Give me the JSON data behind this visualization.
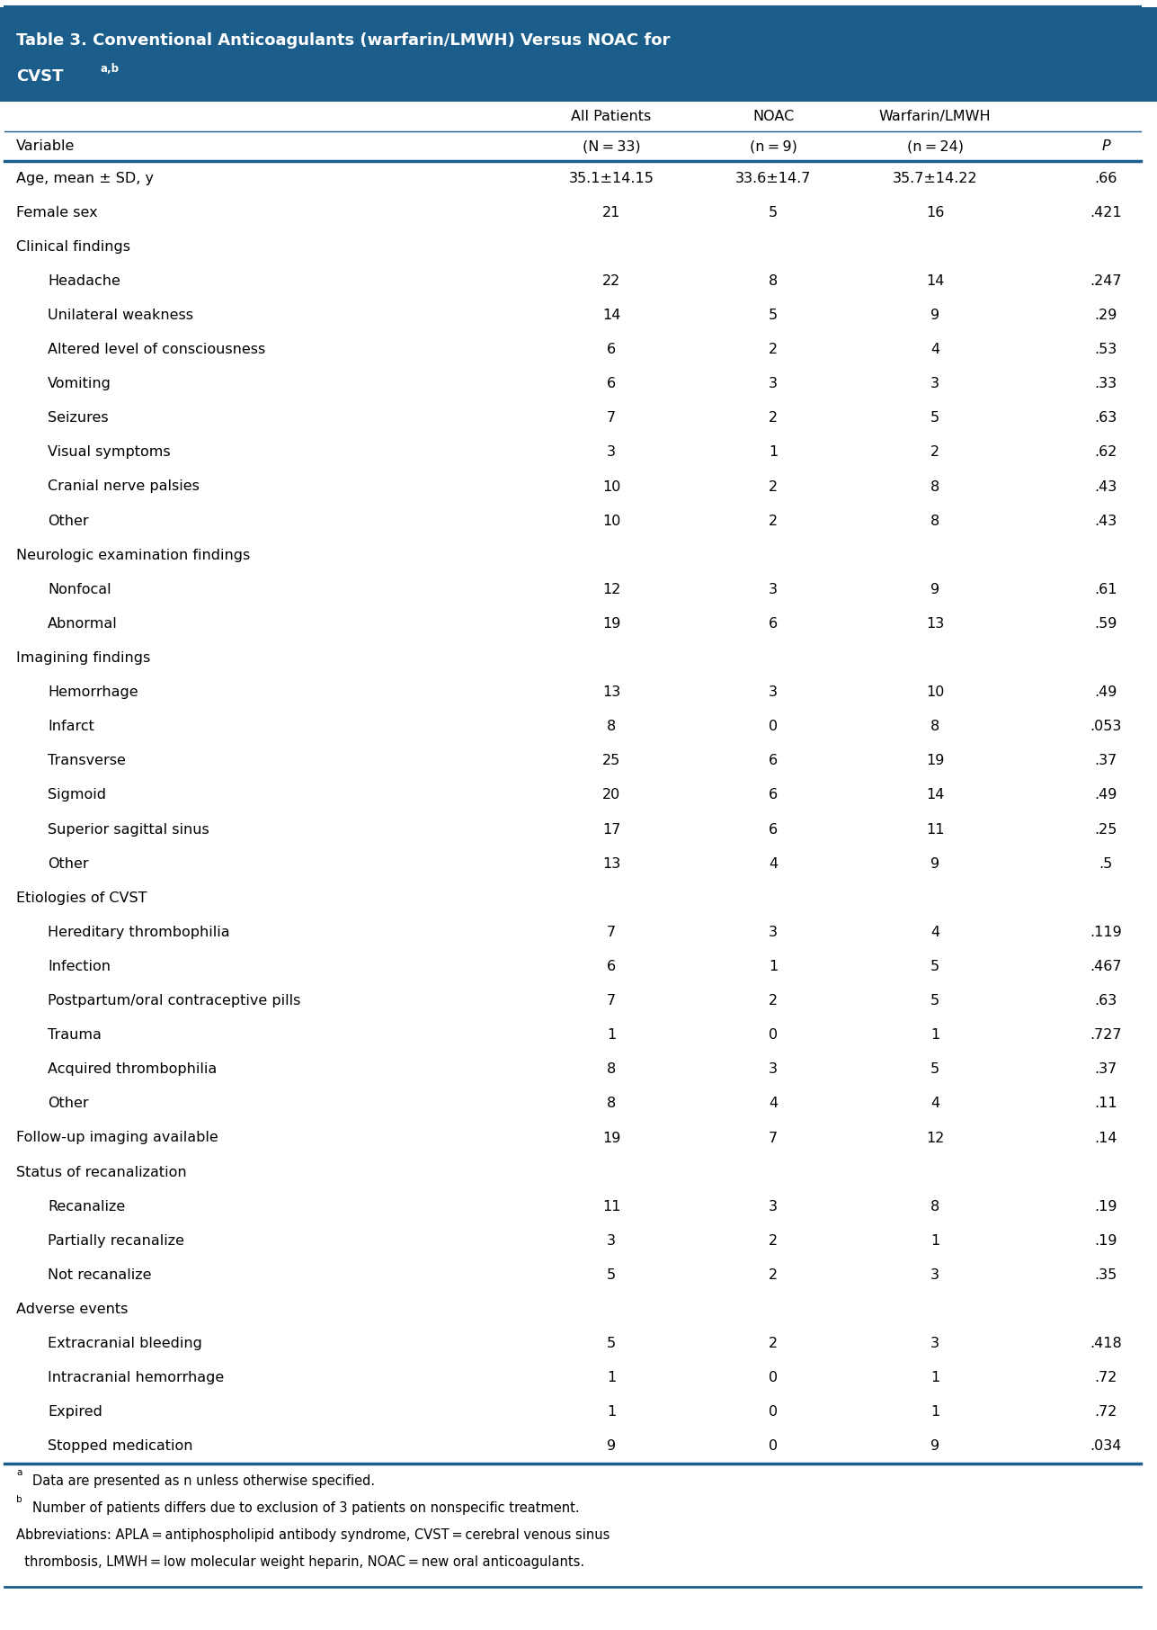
{
  "title_line1": "Table 3. Conventional Anticoagulants (warfarin/LMWH) Versus NOAC for",
  "title_line2": "CVST",
  "title_sup": "a,b",
  "header_color": "#1B5E8B",
  "header_text_color": "#ffffff",
  "col_headers_row1": [
    "",
    "All Patients",
    "NOAC",
    "Warfarin/LMWH",
    ""
  ],
  "col_headers_row2": [
    "Variable",
    "(N = 33)",
    "(n = 9)",
    "(n = 24)",
    "P"
  ],
  "rows": [
    {
      "label": "Age, mean ± SD, y",
      "indent": 0,
      "bold": false,
      "italic": false,
      "section": false,
      "values": [
        "35.1±14.15",
        "33.6±14.7",
        "35.7±14.22",
        ".66"
      ]
    },
    {
      "label": "Female sex",
      "indent": 0,
      "bold": false,
      "italic": false,
      "section": false,
      "values": [
        "21",
        "5",
        "16",
        ".421"
      ]
    },
    {
      "label": "Clinical findings",
      "indent": 0,
      "bold": false,
      "italic": false,
      "section": true,
      "values": [
        "",
        "",
        "",
        ""
      ]
    },
    {
      "label": "Headache",
      "indent": 1,
      "bold": false,
      "italic": false,
      "section": false,
      "values": [
        "22",
        "8",
        "14",
        ".247"
      ]
    },
    {
      "label": "Unilateral weakness",
      "indent": 1,
      "bold": false,
      "italic": false,
      "section": false,
      "values": [
        "14",
        "5",
        "9",
        ".29"
      ]
    },
    {
      "label": "Altered level of consciousness",
      "indent": 1,
      "bold": false,
      "italic": false,
      "section": false,
      "values": [
        "6",
        "2",
        "4",
        ".53"
      ]
    },
    {
      "label": "Vomiting",
      "indent": 1,
      "bold": false,
      "italic": false,
      "section": false,
      "values": [
        "6",
        "3",
        "3",
        ".33"
      ]
    },
    {
      "label": "Seizures",
      "indent": 1,
      "bold": false,
      "italic": false,
      "section": false,
      "values": [
        "7",
        "2",
        "5",
        ".63"
      ]
    },
    {
      "label": "Visual symptoms",
      "indent": 1,
      "bold": false,
      "italic": false,
      "section": false,
      "values": [
        "3",
        "1",
        "2",
        ".62"
      ]
    },
    {
      "label": "Cranial nerve palsies",
      "indent": 1,
      "bold": false,
      "italic": false,
      "section": false,
      "values": [
        "10",
        "2",
        "8",
        ".43"
      ]
    },
    {
      "label": "Other",
      "indent": 1,
      "bold": false,
      "italic": false,
      "section": false,
      "values": [
        "10",
        "2",
        "8",
        ".43"
      ]
    },
    {
      "label": "Neurologic examination findings",
      "indent": 0,
      "bold": false,
      "italic": false,
      "section": true,
      "values": [
        "",
        "",
        "",
        ""
      ]
    },
    {
      "label": "Nonfocal",
      "indent": 1,
      "bold": false,
      "italic": false,
      "section": false,
      "values": [
        "12",
        "3",
        "9",
        ".61"
      ]
    },
    {
      "label": "Abnormal",
      "indent": 1,
      "bold": false,
      "italic": false,
      "section": false,
      "values": [
        "19",
        "6",
        "13",
        ".59"
      ]
    },
    {
      "label": "Imagining findings",
      "indent": 0,
      "bold": false,
      "italic": false,
      "section": true,
      "values": [
        "",
        "",
        "",
        ""
      ]
    },
    {
      "label": "Hemorrhage",
      "indent": 1,
      "bold": false,
      "italic": false,
      "section": false,
      "values": [
        "13",
        "3",
        "10",
        ".49"
      ]
    },
    {
      "label": "Infarct",
      "indent": 1,
      "bold": false,
      "italic": false,
      "section": false,
      "values": [
        "8",
        "0",
        "8",
        ".053"
      ]
    },
    {
      "label": "Transverse",
      "indent": 1,
      "bold": false,
      "italic": false,
      "section": false,
      "values": [
        "25",
        "6",
        "19",
        ".37"
      ]
    },
    {
      "label": "Sigmoid",
      "indent": 1,
      "bold": false,
      "italic": false,
      "section": false,
      "values": [
        "20",
        "6",
        "14",
        ".49"
      ]
    },
    {
      "label": "Superior sagittal sinus",
      "indent": 1,
      "bold": false,
      "italic": false,
      "section": false,
      "values": [
        "17",
        "6",
        "11",
        ".25"
      ]
    },
    {
      "label": "Other",
      "indent": 1,
      "bold": false,
      "italic": false,
      "section": false,
      "values": [
        "13",
        "4",
        "9",
        ".5"
      ]
    },
    {
      "label": "Etiologies of CVST",
      "indent": 0,
      "bold": false,
      "italic": false,
      "section": true,
      "values": [
        "",
        "",
        "",
        ""
      ]
    },
    {
      "label": "Hereditary thrombophilia",
      "indent": 1,
      "bold": false,
      "italic": false,
      "section": false,
      "values": [
        "7",
        "3",
        "4",
        ".119"
      ]
    },
    {
      "label": "Infection",
      "indent": 1,
      "bold": false,
      "italic": false,
      "section": false,
      "values": [
        "6",
        "1",
        "5",
        ".467"
      ]
    },
    {
      "label": "Postpartum/oral contraceptive pills",
      "indent": 1,
      "bold": false,
      "italic": false,
      "section": false,
      "values": [
        "7",
        "2",
        "5",
        ".63"
      ]
    },
    {
      "label": "Trauma",
      "indent": 1,
      "bold": false,
      "italic": false,
      "section": false,
      "values": [
        "1",
        "0",
        "1",
        ".727"
      ]
    },
    {
      "label": "Acquired thrombophilia",
      "indent": 1,
      "bold": false,
      "italic": false,
      "section": false,
      "values": [
        "8",
        "3",
        "5",
        ".37"
      ]
    },
    {
      "label": "Other",
      "indent": 1,
      "bold": false,
      "italic": false,
      "section": false,
      "values": [
        "8",
        "4",
        "4",
        ".11"
      ]
    },
    {
      "label": "Follow-up imaging available",
      "indent": 0,
      "bold": false,
      "italic": false,
      "section": false,
      "values": [
        "19",
        "7",
        "12",
        ".14"
      ]
    },
    {
      "label": "Status of recanalization",
      "indent": 0,
      "bold": false,
      "italic": false,
      "section": true,
      "values": [
        "",
        "",
        "",
        ""
      ]
    },
    {
      "label": "Recanalize",
      "indent": 1,
      "bold": false,
      "italic": false,
      "section": false,
      "values": [
        "11",
        "3",
        "8",
        ".19"
      ]
    },
    {
      "label": "Partially recanalize",
      "indent": 1,
      "bold": false,
      "italic": false,
      "section": false,
      "values": [
        "3",
        "2",
        "1",
        ".19"
      ]
    },
    {
      "label": "Not recanalize",
      "indent": 1,
      "bold": false,
      "italic": false,
      "section": false,
      "values": [
        "5",
        "2",
        "3",
        ".35"
      ]
    },
    {
      "label": "Adverse events",
      "indent": 0,
      "bold": false,
      "italic": false,
      "section": true,
      "values": [
        "",
        "",
        "",
        ""
      ]
    },
    {
      "label": "Extracranial bleeding",
      "indent": 1,
      "bold": false,
      "italic": false,
      "section": false,
      "values": [
        "5",
        "2",
        "3",
        ".418"
      ]
    },
    {
      "label": "Intracranial hemorrhage",
      "indent": 1,
      "bold": false,
      "italic": false,
      "section": false,
      "values": [
        "1",
        "0",
        "1",
        ".72"
      ]
    },
    {
      "label": "Expired",
      "indent": 1,
      "bold": false,
      "italic": false,
      "section": false,
      "values": [
        "1",
        "0",
        "1",
        ".72"
      ]
    },
    {
      "label": "Stopped medication",
      "indent": 1,
      "bold": false,
      "italic": false,
      "section": false,
      "values": [
        "9",
        "0",
        "9",
        ".034"
      ]
    }
  ],
  "bg_color": "#ffffff",
  "line_color": "#1B5E8B",
  "text_color": "#000000"
}
